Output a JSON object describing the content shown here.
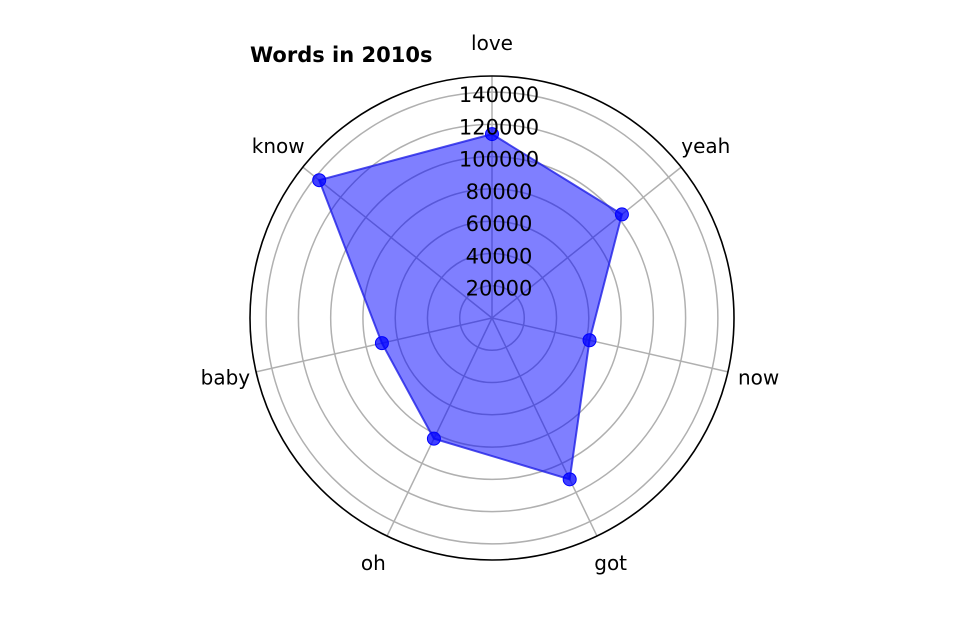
{
  "chart_data": {
    "type": "radar",
    "title": "Words in 2010s",
    "categories": [
      "love",
      "yeah",
      "now",
      "got",
      "oh",
      "baby",
      "know"
    ],
    "series": [
      {
        "values": [
          114000,
          103000,
          62000,
          111000,
          83000,
          70000,
          137000
        ]
      }
    ],
    "rlim": [
      0,
      150000
    ],
    "rticks": [
      20000,
      40000,
      60000,
      80000,
      100000,
      120000,
      140000
    ],
    "rtick_labels": [
      "20000",
      "40000",
      "60000",
      "80000",
      "100000",
      "120000",
      "140000"
    ],
    "grid": true,
    "colors": {
      "fill": "#0000ff",
      "fill_opacity": 0.5,
      "line": "#1f1fe6",
      "marker": "#0000ff",
      "grid": "#b0b0b0",
      "outline": "#000000"
    }
  }
}
